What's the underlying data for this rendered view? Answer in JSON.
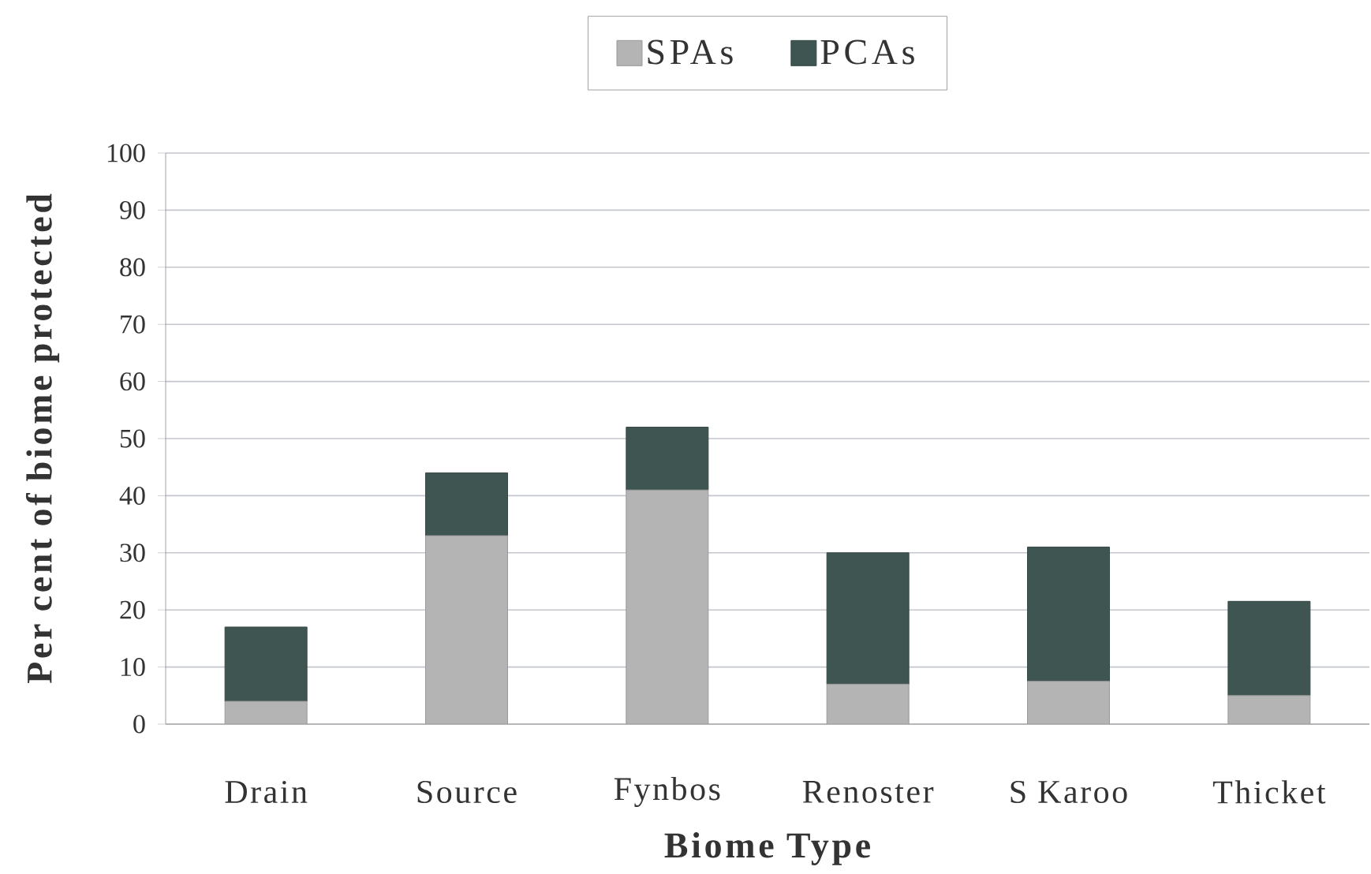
{
  "chart_data": {
    "type": "bar",
    "stacked": true,
    "categories": [
      "Drain",
      "Source",
      "Fynbos",
      "Renoster",
      "S Karoo",
      "Thicket"
    ],
    "series": [
      {
        "name": "SPAs",
        "color": "#b4b4b4",
        "values": [
          4,
          33,
          41,
          7,
          7.5,
          5
        ]
      },
      {
        "name": "PCAs",
        "color": "#3f5552",
        "values": [
          13,
          11,
          11,
          23,
          23.5,
          16.5
        ]
      }
    ],
    "xlabel": "Biome Type",
    "ylabel": "Per cent of biome protected",
    "ylim": [
      0,
      100
    ],
    "yticks": [
      0,
      10,
      20,
      30,
      40,
      50,
      60,
      70,
      80,
      90,
      100
    ],
    "grid": "y",
    "legend": "top"
  }
}
